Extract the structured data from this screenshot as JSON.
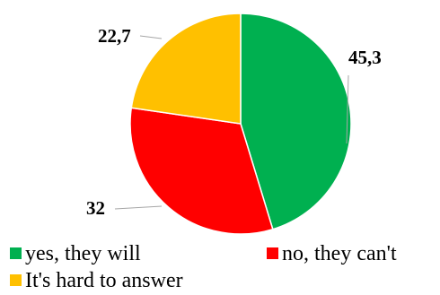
{
  "chart_data": {
    "type": "pie",
    "title": "",
    "categories": [
      "yes, they will",
      "no, they can't",
      "It's hard to answer"
    ],
    "values": [
      45.3,
      32,
      22.7
    ],
    "value_labels": [
      "45,3",
      "32",
      "22,7"
    ],
    "colors": [
      "#00b050",
      "#ff0000",
      "#ffc000"
    ],
    "start_angle_deg": 0,
    "direction": "clockwise",
    "legend_position": "bottom",
    "leader_line_color": "#a6a6a6"
  }
}
